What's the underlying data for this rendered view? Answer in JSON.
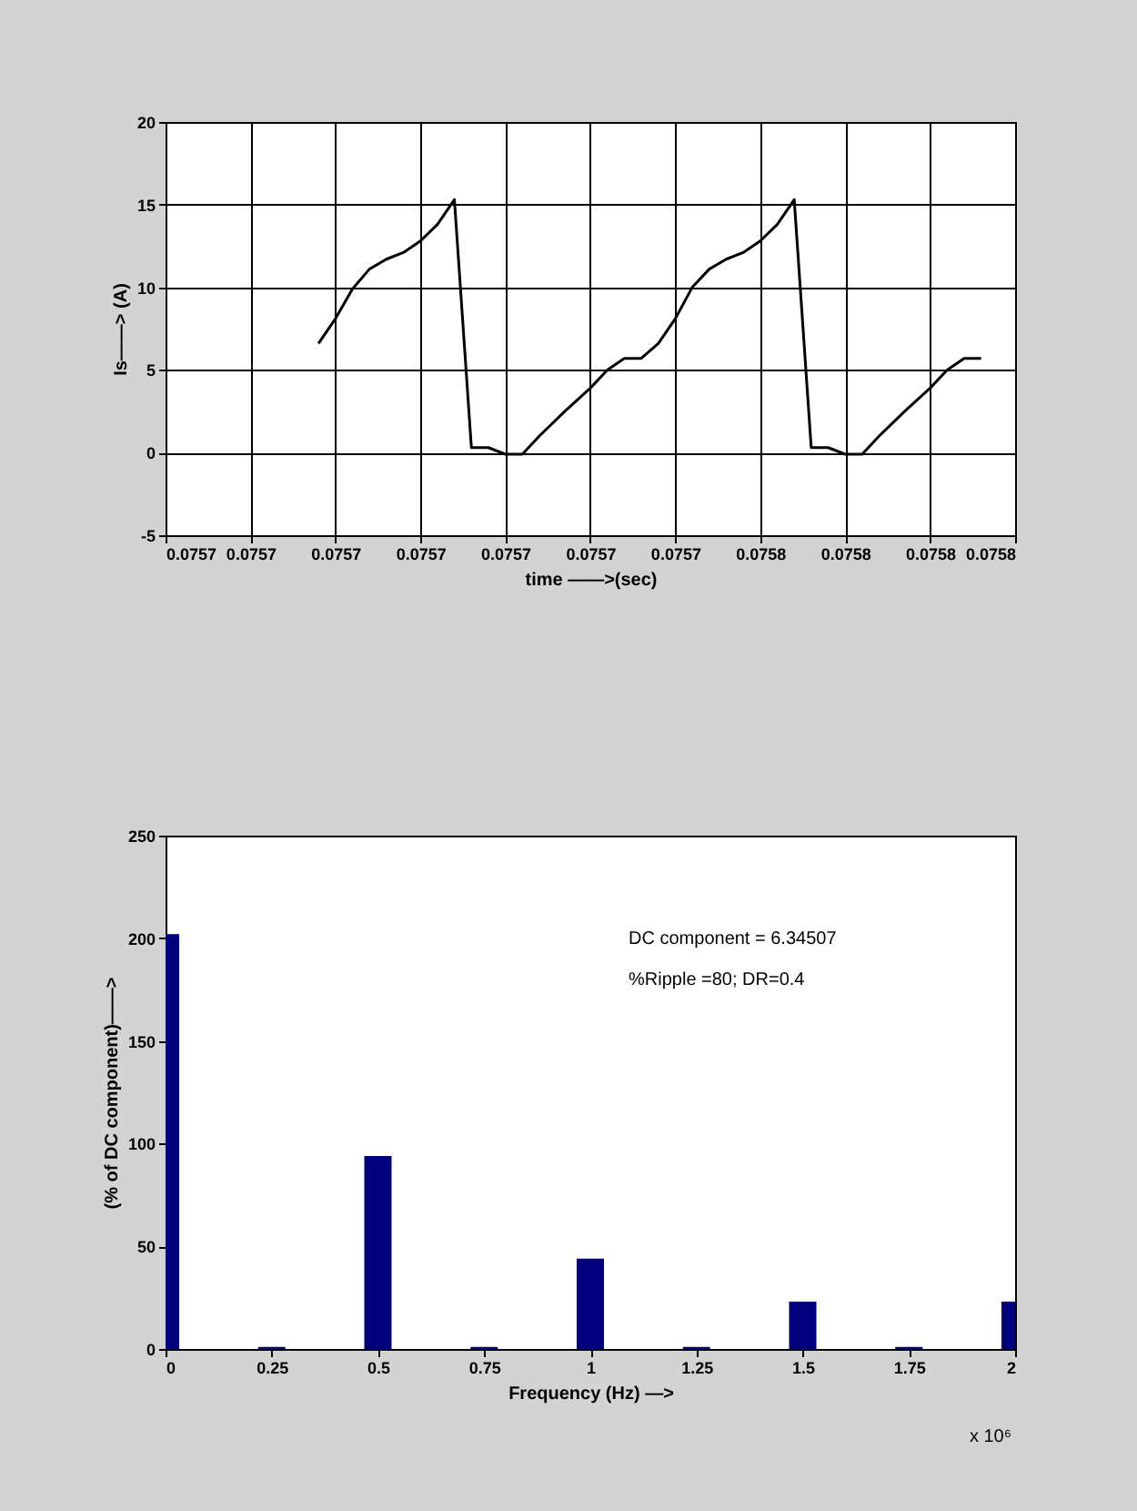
{
  "chart_data": [
    {
      "type": "line",
      "xlabel": "time ——>(sec)",
      "ylabel": "Is——> (A)",
      "xlim": [
        0.075685,
        0.075785
      ],
      "ylim": [
        -5,
        20
      ],
      "xticks": [
        {
          "value": 0.075685,
          "label": "0.0757"
        },
        {
          "value": 0.075695,
          "label": "0.0757"
        },
        {
          "value": 0.075705,
          "label": "0.0757"
        },
        {
          "value": 0.075715,
          "label": "0.0757"
        },
        {
          "value": 0.075725,
          "label": "0.0757"
        },
        {
          "value": 0.075735,
          "label": "0.0757"
        },
        {
          "value": 0.075745,
          "label": "0.0757"
        },
        {
          "value": 0.075755,
          "label": "0.0758"
        },
        {
          "value": 0.075765,
          "label": "0.0758"
        },
        {
          "value": 0.075775,
          "label": "0.0758"
        },
        {
          "value": 0.075785,
          "label": "0.0758"
        }
      ],
      "yticks": [
        -5,
        0,
        5,
        10,
        15,
        20
      ],
      "grid": true,
      "series": [
        {
          "color": "#000000",
          "x": [
            0.075703,
            0.075705,
            0.075707,
            0.075709,
            0.075711,
            0.075713,
            0.075715,
            0.075717,
            0.075719,
            0.075721,
            0.075723,
            0.075725,
            0.075727,
            0.075729,
            0.075732,
            0.075735,
            0.075737,
            0.075739,
            0.075741,
            0.075743,
            0.075745,
            0.075747,
            0.075749,
            0.075751,
            0.075753,
            0.075755,
            0.075757,
            0.075759,
            0.075761,
            0.075763,
            0.075765,
            0.075767,
            0.075769,
            0.075772,
            0.075775,
            0.075777,
            0.075779,
            0.075781
          ],
          "values": [
            6.6,
            8.1,
            9.9,
            11.1,
            11.7,
            12.1,
            12.8,
            13.8,
            15.3,
            0.3,
            0.3,
            -0.1,
            -0.1,
            1.0,
            2.5,
            3.9,
            5.0,
            5.7,
            5.7,
            6.6,
            8.1,
            10.0,
            11.1,
            11.7,
            12.1,
            12.8,
            13.8,
            15.3,
            0.3,
            0.3,
            -0.1,
            -0.1,
            1.0,
            2.5,
            3.9,
            5.0,
            5.7,
            5.7
          ]
        }
      ]
    },
    {
      "type": "bar",
      "xlabel": "Frequency (Hz) —>",
      "ylabel": "(% of DC component)——>",
      "xlim": [
        0,
        2
      ],
      "ylim": [
        0,
        250
      ],
      "xticks": [
        0,
        0.25,
        0.5,
        0.75,
        1,
        1.25,
        1.5,
        1.75,
        2
      ],
      "yticks": [
        0,
        50,
        100,
        150,
        200,
        250
      ],
      "annotations": [
        "DC component = 6.34507",
        "%Ripple =80;  DR=0.4",
        "x 10⁶"
      ],
      "x": [
        0,
        0.25,
        0.5,
        0.75,
        1,
        1.25,
        1.5,
        1.75,
        2
      ],
      "series": [
        {
          "color": "#00007f",
          "values": [
            202,
            1,
            94,
            1,
            44,
            1,
            23,
            1,
            23
          ]
        }
      ]
    }
  ]
}
